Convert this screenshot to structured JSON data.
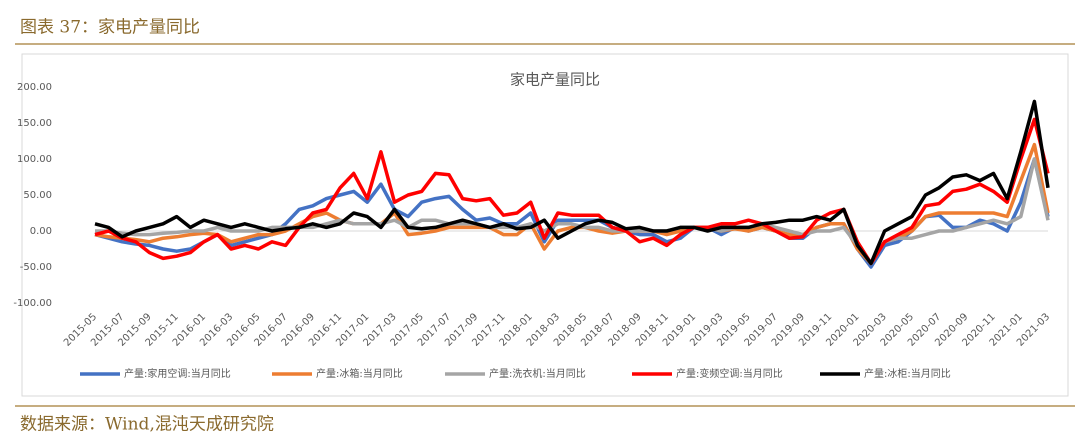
{
  "header": {
    "title": "图表 37：家电产量同比"
  },
  "footer": {
    "source": "数据来源：Wind,混沌天成研究院"
  },
  "chart_data": {
    "type": "line",
    "title": "家电产量同比",
    "categories": [
      "2015-05",
      null,
      "2015-07",
      null,
      "2015-09",
      null,
      "2015-11",
      null,
      "2016-01",
      null,
      "2016-03",
      null,
      "2016-05",
      null,
      "2016-07",
      null,
      "2016-09",
      null,
      "2016-11",
      null,
      "2017-01",
      null,
      "2017-03",
      null,
      "2017-05",
      null,
      "2017-07",
      null,
      "2017-09",
      null,
      "2017-11",
      null,
      "2018-01",
      null,
      "2018-03",
      null,
      "2018-05",
      null,
      "2018-07",
      null,
      "2018-09",
      null,
      "2018-11",
      null,
      "2019-01",
      null,
      "2019-03",
      null,
      "2019-05",
      null,
      "2019-07",
      null,
      "2019-09",
      null,
      "2019-11",
      null,
      "2020-01",
      null,
      "2020-03",
      null,
      "2020-05",
      null,
      "2020-07",
      null,
      "2020-09",
      null,
      "2020-11",
      null,
      "2021-01",
      null,
      "2021-03"
    ],
    "ylim": [
      -100,
      200
    ],
    "yticks": [
      {
        "value": -100,
        "label": "-100.00"
      },
      {
        "value": -50,
        "label": "-50.00"
      },
      {
        "value": 0,
        "label": "0.00"
      },
      {
        "value": 50,
        "label": "50.00"
      },
      {
        "value": 100,
        "label": "100.00"
      },
      {
        "value": 150,
        "label": "150.00"
      },
      {
        "value": 200,
        "label": "200.00"
      }
    ],
    "grid": false,
    "legend": "bottom",
    "series": [
      {
        "name": "产量:家用空调:当月同比",
        "color": "#4472c4",
        "values": [
          -5,
          -10,
          -15,
          -18,
          -20,
          -25,
          -28,
          -25,
          -15,
          -5,
          -20,
          -15,
          -10,
          -5,
          10,
          30,
          35,
          45,
          50,
          55,
          40,
          65,
          30,
          20,
          40,
          45,
          48,
          30,
          15,
          18,
          10,
          10,
          25,
          -15,
          15,
          15,
          15,
          15,
          5,
          0,
          -5,
          -5,
          -15,
          -10,
          5,
          5,
          -5,
          5,
          0,
          5,
          0,
          -10,
          -10,
          5,
          10,
          10,
          -25,
          -50,
          -20,
          -15,
          0,
          20,
          22,
          5,
          5,
          15,
          10,
          0,
          40,
          100,
          20
        ]
      },
      {
        "name": "产量:冰箱:当月同比",
        "color": "#ed7d31",
        "values": [
          -5,
          -8,
          -10,
          -12,
          -15,
          -10,
          -8,
          -5,
          -3,
          -5,
          -15,
          -10,
          -5,
          -5,
          0,
          10,
          20,
          25,
          15,
          10,
          10,
          10,
          25,
          -5,
          -3,
          0,
          5,
          5,
          5,
          5,
          -5,
          -5,
          10,
          -25,
          0,
          5,
          5,
          0,
          -3,
          0,
          0,
          0,
          -5,
          0,
          5,
          5,
          0,
          3,
          0,
          5,
          0,
          -5,
          -5,
          5,
          10,
          10,
          -25,
          -45,
          -15,
          -10,
          0,
          20,
          25,
          25,
          25,
          25,
          25,
          20,
          70,
          120,
          25
        ]
      },
      {
        "name": "产量:洗衣机:当月同比",
        "color": "#a5a5a5",
        "values": [
          0,
          0,
          -3,
          -5,
          -5,
          -3,
          -2,
          0,
          0,
          5,
          0,
          0,
          0,
          5,
          5,
          5,
          5,
          10,
          15,
          10,
          10,
          10,
          15,
          5,
          15,
          15,
          10,
          10,
          10,
          5,
          5,
          5,
          10,
          0,
          10,
          10,
          5,
          5,
          0,
          0,
          0,
          0,
          0,
          5,
          5,
          5,
          0,
          5,
          5,
          10,
          5,
          0,
          -5,
          0,
          0,
          5,
          -20,
          -45,
          -15,
          -10,
          -10,
          -5,
          0,
          0,
          5,
          10,
          15,
          10,
          20,
          100,
          15
        ]
      },
      {
        "name": "产量:变频空调:当月同比",
        "color": "#ff0000",
        "values": [
          -5,
          0,
          -10,
          -15,
          -30,
          -38,
          -35,
          -30,
          -15,
          -5,
          -25,
          -20,
          -25,
          -15,
          -20,
          5,
          25,
          30,
          60,
          80,
          45,
          110,
          40,
          50,
          55,
          80,
          78,
          45,
          42,
          45,
          22,
          25,
          40,
          -10,
          25,
          22,
          22,
          22,
          5,
          0,
          -15,
          -10,
          -20,
          -5,
          5,
          5,
          10,
          10,
          15,
          10,
          0,
          -10,
          -8,
          15,
          25,
          30,
          -15,
          -45,
          -15,
          -5,
          5,
          35,
          38,
          55,
          58,
          65,
          55,
          40,
          100,
          155,
          80
        ]
      },
      {
        "name": "产量:冰柜:当月同比",
        "color": "#000000",
        "values": [
          10,
          5,
          -8,
          0,
          5,
          10,
          20,
          5,
          15,
          10,
          5,
          10,
          5,
          0,
          3,
          5,
          10,
          5,
          10,
          25,
          20,
          5,
          30,
          5,
          3,
          5,
          10,
          15,
          10,
          5,
          10,
          3,
          5,
          15,
          -10,
          0,
          10,
          15,
          12,
          3,
          5,
          0,
          0,
          5,
          5,
          0,
          5,
          5,
          5,
          10,
          12,
          15,
          15,
          20,
          15,
          30,
          -20,
          -45,
          0,
          10,
          20,
          50,
          60,
          75,
          78,
          70,
          80,
          45,
          110,
          180,
          60
        ]
      }
    ]
  }
}
